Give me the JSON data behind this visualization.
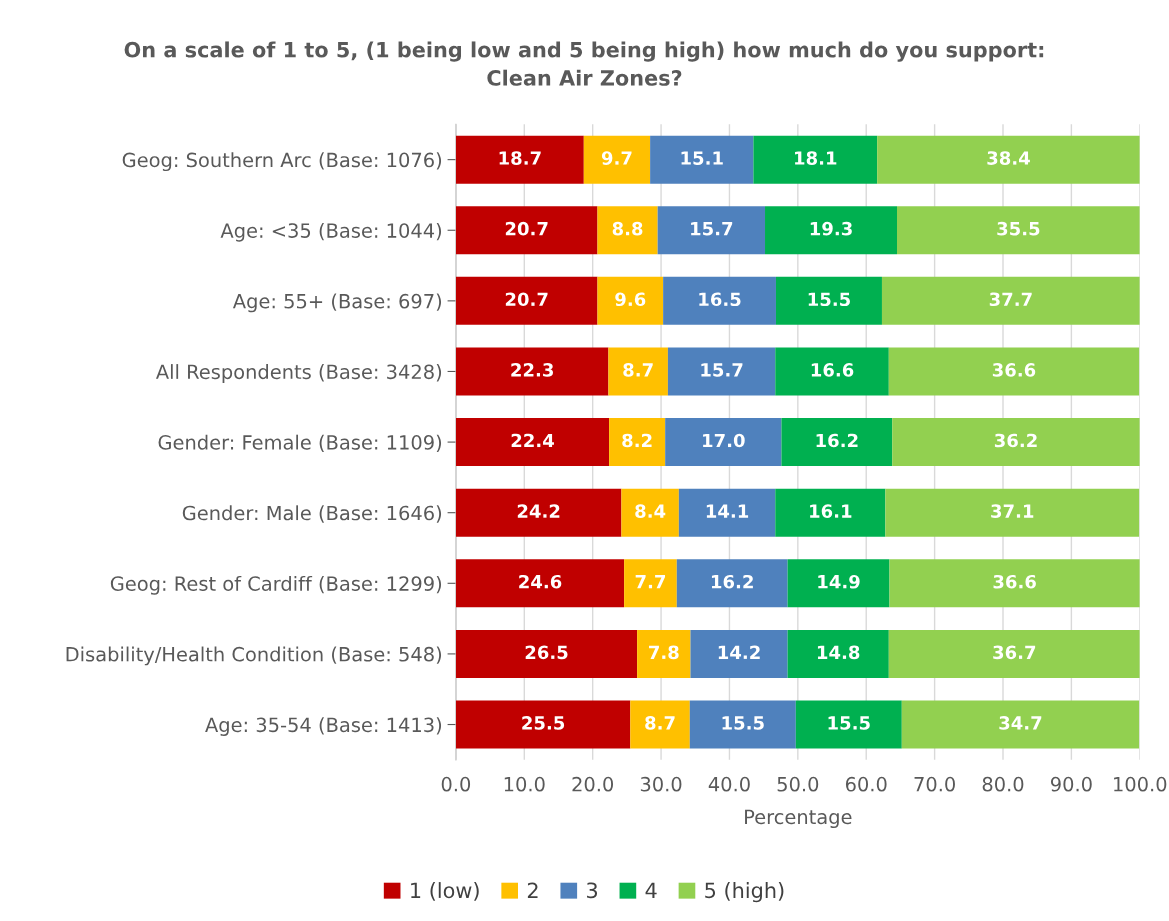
{
  "chart_data": {
    "type": "bar",
    "orientation": "horizontal",
    "stacked": true,
    "title": "On a scale of 1 to 5, (1 being low and 5 being high) how much do you support:\nClean Air Zones?",
    "xlabel": "Percentage",
    "categories": [
      "Geog: Southern Arc (Base: 1076)",
      "Age: <35 (Base: 1044)",
      "Age: 55+ (Base: 697)",
      "All Respondents (Base: 3428)",
      "Gender: Female (Base: 1109)",
      "Gender: Male (Base: 1646)",
      "Geog: Rest of Cardiff (Base: 1299)",
      "Disability/Health Condition (Base: 548)",
      "Age: 35-54 (Base: 1413)"
    ],
    "series": [
      {
        "name": "1 (low)",
        "color": "#c00000",
        "values": [
          18.7,
          20.7,
          20.7,
          22.3,
          22.4,
          24.2,
          24.6,
          26.5,
          25.5
        ],
        "value_labels": [
          "18.7",
          "20.7",
          "20.7",
          "22.3",
          "22.4",
          "24.2",
          "24.6",
          "26.5",
          "25.5"
        ]
      },
      {
        "name": "2",
        "color": "#ffc000",
        "values": [
          9.7,
          8.8,
          9.6,
          8.7,
          8.2,
          8.4,
          7.7,
          7.8,
          8.7
        ],
        "value_labels": [
          "9.7",
          "8.8",
          "9.6",
          "8.7",
          "8.2",
          "8.4",
          "7.7",
          "7.8",
          "8.7"
        ]
      },
      {
        "name": "3",
        "color": "#4f81bd",
        "values": [
          15.1,
          15.7,
          16.5,
          15.7,
          17,
          14.1,
          16.2,
          14.2,
          15.5
        ],
        "value_labels": [
          "15.1",
          "15.7",
          "16.5",
          "15.7",
          "17.0",
          "14.1",
          "16.2",
          "14.2",
          "15.5"
        ]
      },
      {
        "name": "4",
        "color": "#00b050",
        "values": [
          18.1,
          19.3,
          15.5,
          16.6,
          16.2,
          16.1,
          14.9,
          14.8,
          15.5
        ],
        "value_labels": [
          "18.1",
          "19.3",
          "15.5",
          "16.6",
          "16.2",
          "16.1",
          "14.9",
          "14.8",
          "15.5"
        ]
      },
      {
        "name": "5 (high)",
        "color": "#92d050",
        "values": [
          38.4,
          35.5,
          37.7,
          36.6,
          36.2,
          37.1,
          36.6,
          36.7,
          34.7
        ],
        "value_labels": [
          "38.4",
          "35.5",
          "37.7",
          "36.6",
          "36.2",
          "37.1",
          "36.6",
          "36.7",
          "34.7"
        ]
      }
    ],
    "xlim": [
      0,
      100
    ],
    "xticks": [
      {
        "value": 0,
        "label": "0.0"
      },
      {
        "value": 10,
        "label": "10.0"
      },
      {
        "value": 20,
        "label": "20.0"
      },
      {
        "value": 30,
        "label": "30.0"
      },
      {
        "value": 40,
        "label": "40.0"
      },
      {
        "value": 50,
        "label": "50.0"
      },
      {
        "value": 60,
        "label": "60.0"
      },
      {
        "value": 70,
        "label": "70.0"
      },
      {
        "value": 80,
        "label": "80.0"
      },
      {
        "value": 90,
        "label": "90.0"
      },
      {
        "value": 100,
        "label": "100.0"
      }
    ],
    "grid": "x",
    "legend": "bottom"
  }
}
